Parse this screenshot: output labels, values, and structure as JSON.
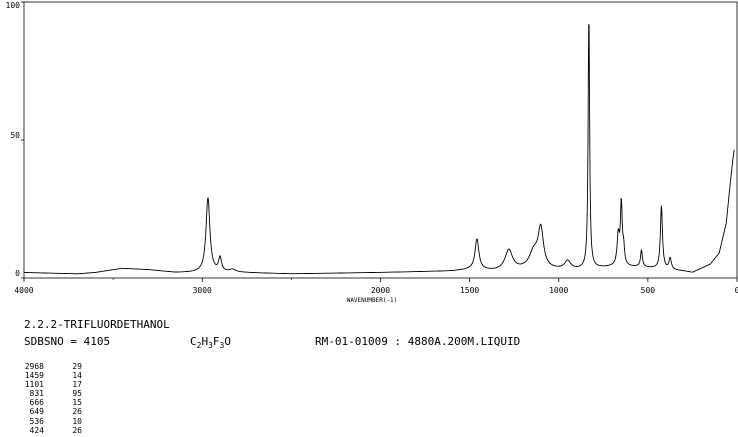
{
  "chart_data": {
    "type": "line",
    "xlabel": "WAVENUMBER(-1)",
    "xlim": [
      4000,
      0
    ],
    "ylim": [
      0,
      100
    ],
    "x_ticks": [
      4000,
      3000,
      2000,
      1500,
      1000,
      500,
      0
    ],
    "x_tick_labels": [
      "4000",
      "3000",
      "2000",
      "1500",
      "1000",
      "500",
      "0"
    ],
    "y_ticks": [
      0,
      50,
      100
    ],
    "y_tick_labels": [
      "0",
      "50",
      "100"
    ],
    "series": [
      {
        "baseline": [
          [
            4000,
            2
          ],
          [
            3700,
            1.5
          ],
          [
            3600,
            2
          ],
          [
            3450,
            3.5
          ],
          [
            3300,
            3
          ],
          [
            3150,
            2
          ],
          [
            3000,
            2
          ],
          [
            2800,
            2
          ],
          [
            2500,
            1.5
          ],
          [
            2000,
            2
          ],
          [
            1600,
            2.5
          ],
          [
            1500,
            3
          ],
          [
            1350,
            2.5
          ],
          [
            1200,
            3
          ],
          [
            1100,
            3
          ],
          [
            900,
            3
          ],
          [
            700,
            4
          ],
          [
            550,
            4
          ],
          [
            400,
            3
          ],
          [
            300,
            2.5
          ],
          [
            250,
            2
          ],
          [
            150,
            5
          ],
          [
            100,
            9
          ],
          [
            60,
            20
          ],
          [
            40,
            33
          ],
          [
            25,
            42
          ],
          [
            15,
            47
          ]
        ],
        "peaks": [
          {
            "x": 2968,
            "y": 29,
            "w": 13
          },
          {
            "x": 2900,
            "y": 7,
            "w": 10
          },
          {
            "x": 2830,
            "y": 3,
            "w": 20
          },
          {
            "x": 1459,
            "y": 14,
            "w": 13
          },
          {
            "x": 1280,
            "y": 10,
            "w": 25
          },
          {
            "x": 1140,
            "y": 9,
            "w": 30
          },
          {
            "x": 1101,
            "y": 17,
            "w": 18
          },
          {
            "x": 950,
            "y": 6,
            "w": 20
          },
          {
            "x": 831,
            "y": 95,
            "w": 5
          },
          {
            "x": 666,
            "y": 15,
            "w": 8
          },
          {
            "x": 649,
            "y": 26,
            "w": 6
          },
          {
            "x": 636,
            "y": 10,
            "w": 6
          },
          {
            "x": 536,
            "y": 10,
            "w": 6
          },
          {
            "x": 424,
            "y": 26,
            "w": 7
          },
          {
            "x": 375,
            "y": 7,
            "w": 8
          },
          {
            "x": 225,
            "y": 2,
            "w": 10
          }
        ]
      }
    ],
    "peak_table": [
      {
        "wavenumber": "2968",
        "intensity": "29"
      },
      {
        "wavenumber": "1459",
        "intensity": "14"
      },
      {
        "wavenumber": "1101",
        "intensity": "17"
      },
      {
        "wavenumber": "831",
        "intensity": "95"
      },
      {
        "wavenumber": "666",
        "intensity": "15"
      },
      {
        "wavenumber": "649",
        "intensity": "26"
      },
      {
        "wavenumber": "536",
        "intensity": "10"
      },
      {
        "wavenumber": "424",
        "intensity": "26"
      }
    ]
  },
  "info": {
    "compound": "2.2.2-TRIFLUORDETHANOL",
    "sdbs": "SDBSNO = 4105",
    "formula": {
      "c": "C",
      "c_n": "2",
      "h": "H",
      "h_n": "3",
      "f": "F",
      "f_n": "3",
      "o": "O"
    },
    "ramaninfo": "RM-01-01009 : 4880A.200M.LIQUID"
  }
}
